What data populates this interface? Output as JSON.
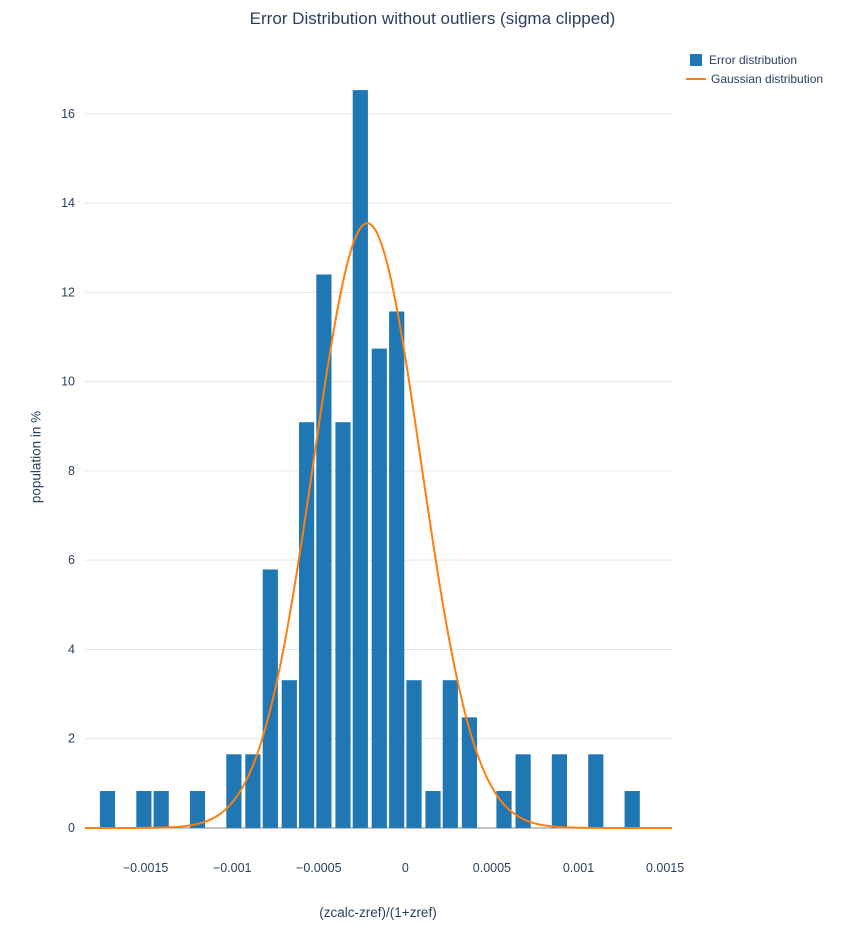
{
  "chart_data": {
    "type": "bar",
    "subtype": "histogram-with-fit-curve",
    "title": "Error Distribution without outliers (sigma clipped)",
    "xlabel": "(zcalc-zref)/(1+zref)",
    "ylabel": "population in %",
    "xlim": [
      -0.00185,
      0.00154
    ],
    "ylim": [
      0,
      16.6
    ],
    "x_ticks": [
      -0.0015,
      -0.001,
      -0.0005,
      0,
      0.0005,
      0.001,
      0.0015
    ],
    "x_tick_labels": [
      "−0.0015",
      "−0.001",
      "−0.0005",
      "0",
      "0.0005",
      "0.001",
      "0.0015"
    ],
    "y_ticks": [
      0,
      2,
      4,
      6,
      8,
      10,
      12,
      14,
      16
    ],
    "grid": true,
    "legend_position": "top-right",
    "background_color": "#ffffff",
    "gridline_color": "#e6e6e6",
    "axisline_color": "#888888",
    "text_color": "#2a3f5f",
    "bar_width": 8.8e-05,
    "series": [
      {
        "name": "Error distribution",
        "type": "bar",
        "color": "#1f77b4",
        "x": [
          -0.00172,
          -0.00151,
          -0.00141,
          -0.0012,
          -0.00099,
          -0.00088,
          -0.00078,
          -0.00067,
          -0.00057,
          -0.00047,
          -0.00036,
          -0.00026,
          -0.00015,
          -5e-05,
          5e-05,
          0.00016,
          0.00026,
          0.00037,
          0.00057,
          0.00068,
          0.00089,
          0.0011,
          0.00131
        ],
        "y": [
          0.83,
          0.83,
          0.83,
          0.83,
          1.65,
          1.65,
          5.79,
          3.31,
          9.09,
          12.4,
          9.09,
          16.53,
          10.74,
          11.57,
          3.31,
          0.83,
          3.31,
          2.48,
          0.83,
          1.65,
          1.65,
          1.65,
          0.83
        ]
      },
      {
        "name": "Gaussian distribution",
        "type": "line",
        "color": "#ff7f0e",
        "gaussian": {
          "amplitude": 13.55,
          "mean": -0.00022,
          "sigma": 0.00031
        }
      }
    ]
  }
}
